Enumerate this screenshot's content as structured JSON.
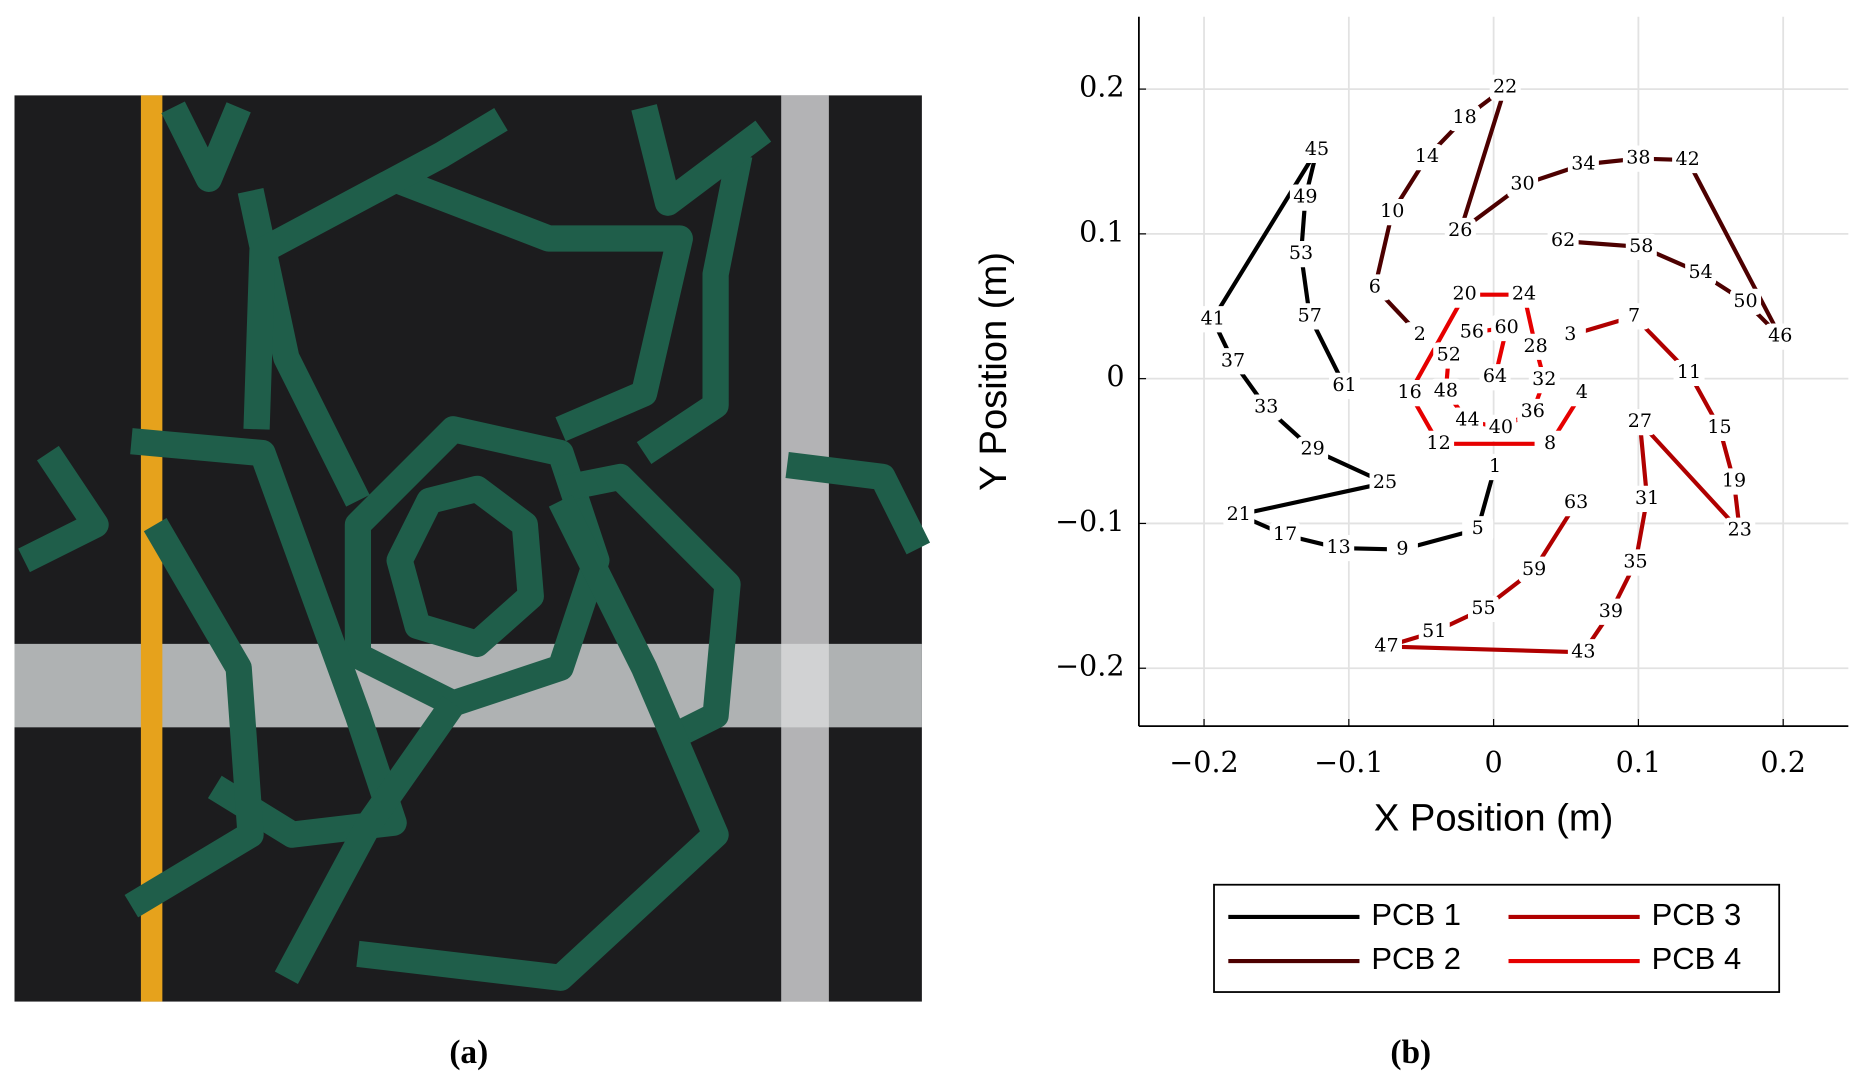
{
  "captions": {
    "a": "(a)",
    "b": "(b)"
  },
  "chart_data": {
    "type": "line",
    "xlabel": "X Position (m)",
    "ylabel": "Y Position (m)",
    "xlim": [
      -0.245,
      0.245
    ],
    "ylim": [
      -0.24,
      0.25
    ],
    "xticks": [
      {
        "value": -0.2,
        "label": "−0.2"
      },
      {
        "value": -0.1,
        "label": "−0.1"
      },
      0,
      0.1,
      0.2
    ],
    "yticks": [
      {
        "value": -0.2,
        "label": "−0.2"
      },
      {
        "value": -0.1,
        "label": "−0.1"
      },
      0,
      0.1,
      0.2
    ],
    "grid": true,
    "legend_position": "below",
    "series": [
      {
        "name": "PCB 1",
        "color": "#000000",
        "point_labels": [
          1,
          5,
          9,
          13,
          17,
          21,
          25,
          29,
          33,
          37,
          41,
          45,
          49,
          53,
          57,
          61
        ],
        "x": [
          0.001,
          -0.011,
          -0.063,
          -0.107,
          -0.144,
          -0.176,
          -0.075,
          -0.125,
          -0.157,
          -0.18,
          -0.194,
          -0.122,
          -0.13,
          -0.133,
          -0.127,
          -0.103
        ],
        "values": [
          -0.061,
          -0.104,
          -0.118,
          -0.117,
          -0.108,
          -0.094,
          -0.072,
          -0.049,
          -0.02,
          0.012,
          0.041,
          0.158,
          0.125,
          0.086,
          0.043,
          -0.005
        ]
      },
      {
        "name": "PCB 2",
        "color": "#4d0000",
        "point_labels": [
          2,
          6,
          10,
          14,
          18,
          22,
          26,
          30,
          34,
          38,
          42,
          46,
          50,
          54,
          58,
          62
        ],
        "x": [
          -0.051,
          -0.082,
          -0.07,
          -0.046,
          -0.02,
          0.008,
          -0.023,
          0.02,
          0.062,
          0.1,
          0.134,
          0.198,
          0.174,
          0.143,
          0.102,
          0.048
        ],
        "values": [
          0.03,
          0.063,
          0.115,
          0.153,
          0.18,
          0.201,
          0.102,
          0.134,
          0.148,
          0.152,
          0.151,
          0.029,
          0.053,
          0.073,
          0.091,
          0.095
        ]
      },
      {
        "name": "PCB 3",
        "color": "#b00000",
        "point_labels": [
          3,
          7,
          11,
          15,
          19,
          23,
          27,
          31,
          35,
          39,
          43,
          47,
          51,
          55,
          59,
          63
        ],
        "x": [
          0.053,
          0.097,
          0.135,
          0.156,
          0.166,
          0.17,
          0.101,
          0.106,
          0.098,
          0.081,
          0.062,
          -0.074,
          -0.041,
          -0.007,
          0.028,
          0.057
        ],
        "values": [
          0.03,
          0.043,
          0.004,
          -0.034,
          -0.071,
          -0.105,
          -0.03,
          -0.083,
          -0.127,
          -0.161,
          -0.189,
          -0.185,
          -0.175,
          -0.159,
          -0.132,
          -0.086
        ]
      },
      {
        "name": "PCB 4",
        "color": "#e60000",
        "point_labels": [
          4,
          8,
          12,
          16,
          20,
          24,
          28,
          32,
          36,
          40,
          44,
          48,
          52,
          56,
          60,
          64
        ],
        "x": [
          0.061,
          0.039,
          -0.038,
          -0.058,
          -0.02,
          0.021,
          0.029,
          0.035,
          0.027,
          0.005,
          -0.018,
          -0.033,
          -0.031,
          -0.015,
          0.009,
          0.001
        ],
        "values": [
          -0.01,
          -0.045,
          -0.045,
          -0.01,
          0.058,
          0.058,
          0.022,
          -0.001,
          -0.023,
          -0.034,
          -0.029,
          -0.009,
          0.016,
          0.032,
          0.035,
          0.001
        ]
      }
    ]
  }
}
